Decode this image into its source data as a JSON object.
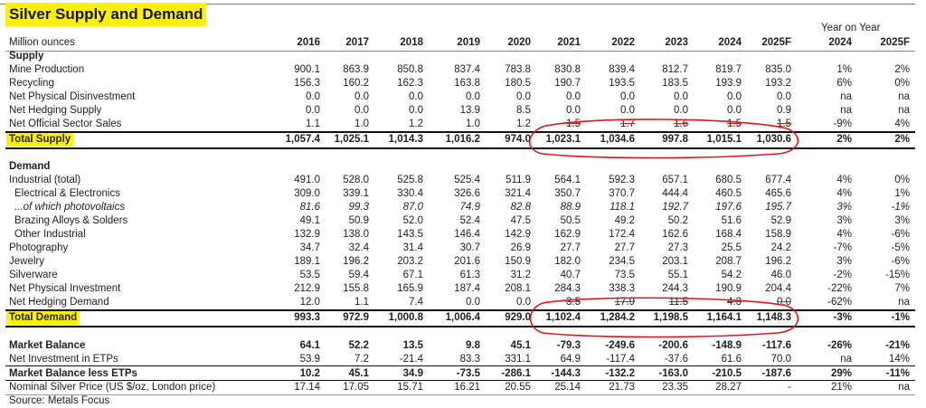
{
  "title": "Silver Supply and Demand",
  "unit_label": "Million ounces",
  "yoy_header": "Year on Year",
  "columns": [
    "2016",
    "2017",
    "2018",
    "2019",
    "2020",
    "2021",
    "2022",
    "2023",
    "2024",
    "2025F",
    "2024",
    "2025F"
  ],
  "supply_header": "Supply",
  "supply_rows": [
    {
      "label": "Mine Production",
      "values": [
        "900.1",
        "863.9",
        "850.8",
        "837.4",
        "783.8",
        "830.8",
        "839.4",
        "812.7",
        "819.7",
        "835.0",
        "1%",
        "2%"
      ]
    },
    {
      "label": "Recycling",
      "values": [
        "156.3",
        "160.2",
        "162.3",
        "163.8",
        "180.5",
        "190.7",
        "193.5",
        "183.5",
        "193.9",
        "193.2",
        "6%",
        "0%"
      ]
    },
    {
      "label": "Net Physical Disinvestment",
      "values": [
        "0.0",
        "0.0",
        "0.0",
        "0.0",
        "0.0",
        "0.0",
        "0.0",
        "0.0",
        "0.0",
        "0.0",
        "na",
        "na"
      ]
    },
    {
      "label": "Net Hedging Supply",
      "values": [
        "0.0",
        "0.0",
        "0.0",
        "13.9",
        "8.5",
        "0.0",
        "0.0",
        "0.0",
        "0.0",
        "0.9",
        "na",
        "na"
      ]
    },
    {
      "label": "Net Official Sector Sales",
      "values": [
        "1.1",
        "1.0",
        "1.2",
        "1.0",
        "1.2",
        "1.5",
        "1.7",
        "1.6",
        "1.5",
        "1.5",
        "-9%",
        "4%"
      ]
    }
  ],
  "total_supply": {
    "label": "Total Supply",
    "values": [
      "1,057.4",
      "1,025.1",
      "1,014.3",
      "1,016.2",
      "974.0",
      "1,023.1",
      "1,034.6",
      "997.8",
      "1,015.1",
      "1,030.6",
      "2%",
      "2%"
    ]
  },
  "demand_header": "Demand",
  "demand_rows": [
    {
      "label": "Industrial (total)",
      "values": [
        "491.0",
        "528.0",
        "525.8",
        "525.4",
        "511.9",
        "564.1",
        "592.3",
        "657.1",
        "680.5",
        "677.4",
        "4%",
        "0%"
      ]
    },
    {
      "label": "Electrical & Electronics",
      "indent": true,
      "values": [
        "309.0",
        "339.1",
        "330.4",
        "326.6",
        "321.4",
        "350.7",
        "370.7",
        "444.4",
        "460.5",
        "465.6",
        "4%",
        "1%"
      ]
    },
    {
      "label": "...of which photovoltaics",
      "indent": true,
      "italic": true,
      "values": [
        "81.6",
        "99.3",
        "87.0",
        "74.9",
        "82.8",
        "88.9",
        "118.1",
        "192.7",
        "197.6",
        "195.7",
        "3%",
        "-1%"
      ]
    },
    {
      "label": "Brazing Alloys & Solders",
      "indent": true,
      "values": [
        "49.1",
        "50.9",
        "52.0",
        "52.4",
        "47.5",
        "50.5",
        "49.2",
        "50.2",
        "51.6",
        "52.9",
        "3%",
        "3%"
      ]
    },
    {
      "label": "Other Industrial",
      "indent": true,
      "values": [
        "132.9",
        "138.0",
        "143.5",
        "146.4",
        "142.9",
        "162.9",
        "172.4",
        "162.6",
        "168.4",
        "158.9",
        "4%",
        "-6%"
      ]
    },
    {
      "label": "Photography",
      "values": [
        "34.7",
        "32.4",
        "31.4",
        "30.7",
        "26.9",
        "27.7",
        "27.7",
        "27.3",
        "25.5",
        "24.2",
        "-7%",
        "-5%"
      ]
    },
    {
      "label": "Jewelry",
      "values": [
        "189.1",
        "196.2",
        "203.2",
        "201.6",
        "150.9",
        "182.0",
        "234.5",
        "203.1",
        "208.7",
        "196.2",
        "3%",
        "-6%"
      ]
    },
    {
      "label": "Silverware",
      "values": [
        "53.5",
        "59.4",
        "67.1",
        "61.3",
        "31.2",
        "40.7",
        "73.5",
        "55.1",
        "54.2",
        "46.0",
        "-2%",
        "-15%"
      ]
    },
    {
      "label": "Net Physical Investment",
      "values": [
        "212.9",
        "155.8",
        "165.9",
        "187.4",
        "208.1",
        "284.3",
        "338.3",
        "244.3",
        "190.9",
        "204.4",
        "-22%",
        "7%"
      ]
    },
    {
      "label": "Net Hedging Demand",
      "values": [
        "12.0",
        "1.1",
        "7.4",
        "0.0",
        "0.0",
        "3.5",
        "17.9",
        "11.5",
        "4.3",
        "0.0",
        "-62%",
        "na"
      ]
    }
  ],
  "total_demand": {
    "label": "Total Demand",
    "values": [
      "993.3",
      "972.9",
      "1,000.8",
      "1,006.4",
      "929.0",
      "1,102.4",
      "1,284.2",
      "1,198.5",
      "1,164.1",
      "1,148.3",
      "-3%",
      "-1%"
    ]
  },
  "balance_rows": [
    {
      "label": "Market Balance",
      "bold": true,
      "values": [
        "64.1",
        "52.2",
        "13.5",
        "9.8",
        "45.1",
        "-79.3",
        "-249.6",
        "-200.6",
        "-148.9",
        "-117.6",
        "-26%",
        "-21%"
      ]
    },
    {
      "label": "Net Investment in ETPs",
      "values": [
        "53.9",
        "7.2",
        "-21.4",
        "83.3",
        "331.1",
        "64.9",
        "-117.4",
        "-37.6",
        "61.6",
        "70.0",
        "na",
        "14%"
      ]
    },
    {
      "label": "Market Balance less ETPs",
      "bold": true,
      "values": [
        "10.2",
        "45.1",
        "34.9",
        "-73.5",
        "-286.1",
        "-144.3",
        "-132.2",
        "-163.0",
        "-210.5",
        "-187.6",
        "29%",
        "-11%"
      ]
    },
    {
      "label": "Nominal Silver Price (US $/oz, London price)",
      "values": [
        "17.14",
        "17.05",
        "15.71",
        "16.21",
        "20.55",
        "25.14",
        "21.73",
        "23.35",
        "28.27",
        "-",
        "21%",
        "na"
      ]
    }
  ],
  "source": "Source: Metals Focus",
  "colors": {
    "highlight": "#fff200",
    "annotation": "#e8141b"
  }
}
